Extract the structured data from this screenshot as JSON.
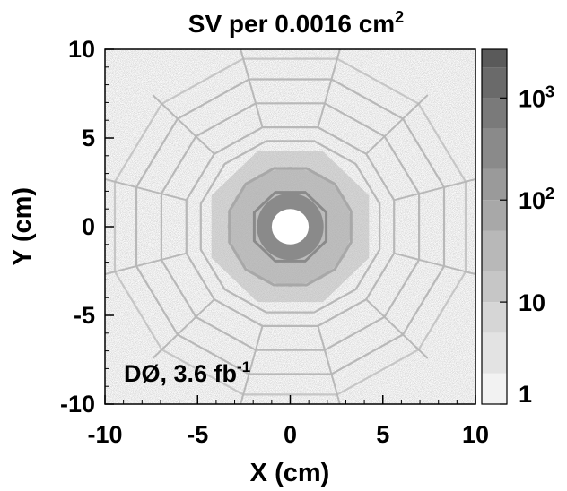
{
  "chart_data": {
    "type": "heatmap",
    "title_main": "SV per 0.0016 cm",
    "title_exp": "2",
    "xlabel": "X (cm)",
    "ylabel": "Y (cm)",
    "xlim": [
      -10,
      10
    ],
    "ylim": [
      -10,
      10
    ],
    "x_ticks": [
      "-10",
      "-5",
      "0",
      "5",
      "10"
    ],
    "y_ticks": [
      "10",
      "5",
      "0",
      "-5",
      "-10"
    ],
    "annotation": {
      "main": "DØ, 3.6 fb",
      "exp": "-1"
    },
    "colorbar": {
      "scale": "log",
      "range": [
        1,
        3000
      ],
      "tick_labels": [
        {
          "value": 1,
          "base": "1",
          "exp": ""
        },
        {
          "value": 10,
          "base": "10",
          "exp": ""
        },
        {
          "value": 100,
          "base": "10",
          "exp": "2"
        },
        {
          "value": 1000,
          "base": "10",
          "exp": "3"
        }
      ],
      "bands": [
        {
          "from": 1,
          "to": 2,
          "color": "#f2f2f2"
        },
        {
          "from": 2,
          "to": 5,
          "color": "#e3e3e3"
        },
        {
          "from": 5,
          "to": 10,
          "color": "#d6d6d6"
        },
        {
          "from": 10,
          "to": 20,
          "color": "#c6c6c6"
        },
        {
          "from": 20,
          "to": 50,
          "color": "#b8b8b8"
        },
        {
          "from": 50,
          "to": 100,
          "color": "#a8a8a8"
        },
        {
          "from": 100,
          "to": 200,
          "color": "#9a9a9a"
        },
        {
          "from": 200,
          "to": 500,
          "color": "#8a8a8a"
        },
        {
          "from": 500,
          "to": 1000,
          "color": "#7a7a7a"
        },
        {
          "from": 1000,
          "to": 2000,
          "color": "#6a6a6a"
        },
        {
          "from": 2000,
          "to": 3000,
          "color": "#5a5a5a"
        }
      ]
    },
    "structures": {
      "beam_pipe_radius": 1.0,
      "inner_region_radius": 1.8,
      "dense_region_radius": 4.6,
      "rings": [
        {
          "r": 2.1,
          "sides": 8,
          "level": 200
        },
        {
          "r": 3.4,
          "sides": 12,
          "level": 80
        },
        {
          "r": 5.0,
          "sides": 12,
          "level": 40
        },
        {
          "r": 5.8,
          "sides": 12,
          "level": 30
        },
        {
          "r": 7.2,
          "sides": 12,
          "level": 25
        },
        {
          "r": 8.6,
          "sides": 12,
          "level": 20
        },
        {
          "r": 9.8,
          "sides": 12,
          "level": 15
        }
      ]
    }
  }
}
